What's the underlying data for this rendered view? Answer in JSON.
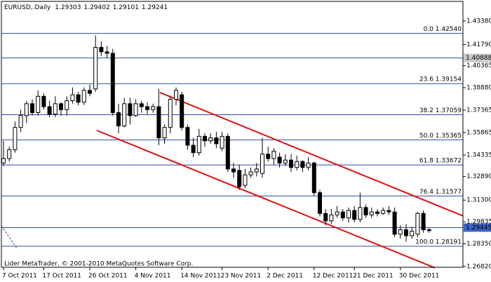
{
  "chart_data": {
    "type": "candlestick",
    "title": "EURUSD,.Daily",
    "footer": "Lider MetaTrader, © 2001-2010 MetaQuotes Software Corp.",
    "categories": [
      "7 Oct 2011",
      null,
      null,
      null,
      null,
      null,
      null,
      "17 Oct 2011",
      null,
      null,
      null,
      null,
      null,
      null,
      null,
      "26 Oct 2011",
      null,
      null,
      null,
      null,
      null,
      null,
      null,
      "4 Nov 2011",
      null,
      null,
      null,
      null,
      null,
      null,
      null,
      "14 Nov 2011",
      null,
      null,
      null,
      null,
      null,
      null,
      "23 Nov 2011",
      null,
      null,
      null,
      null,
      null,
      null,
      null,
      "2 Dec 2011",
      null,
      null,
      null,
      null,
      null,
      null,
      null,
      "12 Dec 2011",
      null,
      null,
      null,
      null,
      null,
      null,
      "21 Dec 2011",
      null,
      null,
      null,
      null,
      null,
      null,
      null,
      "30 Dec 2011",
      null,
      null,
      null,
      null,
      null
    ],
    "open": [
      1.338,
      1.341,
      1.347,
      1.362,
      1.37,
      1.378,
      1.372,
      1.383,
      1.376,
      1.371,
      1.378,
      1.374,
      1.38,
      1.384,
      1.379,
      1.387,
      1.388,
      1.416,
      1.413,
      1.412,
      1.372,
      1.363,
      1.378,
      1.37,
      1.378,
      1.376,
      1.374,
      1.376,
      1.355,
      1.362,
      1.381,
      1.384,
      1.362,
      1.35,
      1.345,
      1.356,
      1.353,
      1.355,
      1.348,
      1.356,
      1.334,
      1.333,
      1.323,
      1.33,
      1.332,
      1.331,
      1.344,
      1.341,
      1.342,
      1.338,
      1.34,
      1.335,
      1.339,
      1.335,
      1.338,
      1.318,
      1.304,
      1.299,
      1.303,
      1.305,
      1.301,
      1.306,
      1.3,
      1.308,
      1.303,
      1.305,
      1.304,
      1.306,
      1.305,
      1.29,
      1.293,
      1.289,
      1.29,
      1.304,
      1.29303
    ],
    "high": [
      1.353,
      1.349,
      1.366,
      1.374,
      1.38,
      1.381,
      1.387,
      1.385,
      1.38,
      1.383,
      1.379,
      1.383,
      1.389,
      1.386,
      1.389,
      1.391,
      1.424,
      1.42,
      1.417,
      1.415,
      1.378,
      1.382,
      1.382,
      1.381,
      1.38,
      1.379,
      1.378,
      1.388,
      1.364,
      1.383,
      1.389,
      1.386,
      1.364,
      1.355,
      1.361,
      1.358,
      1.358,
      1.359,
      1.359,
      1.358,
      1.338,
      1.337,
      1.334,
      1.335,
      1.338,
      1.355,
      1.349,
      1.348,
      1.345,
      1.344,
      1.344,
      1.343,
      1.34,
      1.342,
      1.339,
      1.32,
      1.307,
      1.307,
      1.309,
      1.307,
      1.308,
      1.309,
      1.318,
      1.31,
      1.308,
      1.307,
      1.308,
      1.309,
      1.308,
      1.296,
      1.297,
      1.295,
      1.305,
      1.306,
      1.29402
    ],
    "low": [
      1.336,
      1.339,
      1.345,
      1.359,
      1.365,
      1.37,
      1.37,
      1.374,
      1.369,
      1.369,
      1.37,
      1.37,
      1.378,
      1.377,
      1.377,
      1.383,
      1.386,
      1.41,
      1.409,
      1.37,
      1.358,
      1.362,
      1.364,
      1.369,
      1.372,
      1.371,
      1.372,
      1.35,
      1.351,
      1.358,
      1.377,
      1.36,
      1.347,
      1.342,
      1.343,
      1.349,
      1.351,
      1.348,
      1.346,
      1.332,
      1.328,
      1.32,
      1.321,
      1.328,
      1.329,
      1.328,
      1.339,
      1.337,
      1.335,
      1.336,
      1.332,
      1.333,
      1.332,
      1.333,
      1.316,
      1.302,
      1.296,
      1.297,
      1.301,
      1.299,
      1.298,
      1.298,
      1.298,
      1.301,
      1.301,
      1.302,
      1.303,
      1.303,
      1.288,
      1.287,
      1.285,
      1.287,
      1.288,
      1.291,
      1.29101
    ],
    "close": [
      1.341,
      1.347,
      1.362,
      1.37,
      1.378,
      1.372,
      1.383,
      1.376,
      1.371,
      1.378,
      1.374,
      1.38,
      1.384,
      1.379,
      1.387,
      1.385,
      1.416,
      1.413,
      1.412,
      1.372,
      1.363,
      1.378,
      1.37,
      1.378,
      1.376,
      1.374,
      1.376,
      1.355,
      1.362,
      1.381,
      1.387,
      1.362,
      1.35,
      1.345,
      1.356,
      1.353,
      1.355,
      1.351,
      1.356,
      1.334,
      1.332,
      1.322,
      1.33,
      1.332,
      1.334,
      1.344,
      1.341,
      1.346,
      1.338,
      1.34,
      1.335,
      1.339,
      1.335,
      1.338,
      1.318,
      1.304,
      1.299,
      1.303,
      1.305,
      1.301,
      1.306,
      1.3,
      1.308,
      1.303,
      1.305,
      1.304,
      1.306,
      1.305,
      1.29,
      1.293,
      1.289,
      1.292,
      1.304,
      1.293,
      1.29241
    ],
    "bull_color": "#ffffff",
    "bear_color": "#000000",
    "ylim": [
      1.2677,
      1.447
    ],
    "yticks": [
      {
        "value": 1.4338,
        "label": "1.43380"
      },
      {
        "value": 1.4179,
        "label": "1.41790"
      },
      {
        "value": 1.40365,
        "label": "1.40365"
      },
      {
        "value": 1.3888,
        "label": "1.38880"
      },
      {
        "value": 1.37365,
        "label": "1.37365"
      },
      {
        "value": 1.35865,
        "label": "1.35865"
      },
      {
        "value": 1.34335,
        "label": "1.34335"
      },
      {
        "value": 1.3289,
        "label": "1.32890"
      },
      {
        "value": 1.313,
        "label": "1.31300"
      },
      {
        "value": 1.29835,
        "label": "1.29835"
      },
      {
        "value": 1.2835,
        "label": "1.28350"
      },
      {
        "value": 1.2682,
        "label": "1.26820"
      }
    ],
    "fib_color": "#34489c",
    "fib_levels": [
      {
        "value": 1.4254,
        "label": "0.0 1.42540"
      },
      {
        "value": 1.39154,
        "label": "23.6 1.39154"
      },
      {
        "value": 1.37059,
        "label": "38.2 1.37059"
      },
      {
        "value": 1.35365,
        "label": "50.0 1.35365"
      },
      {
        "value": 1.33672,
        "label": "61.8 1.33672"
      },
      {
        "value": 1.31577,
        "label": "76.4 1.31577"
      },
      {
        "value": 1.28191,
        "label": "100.0 1.28191"
      }
    ],
    "price_lines": [
      {
        "value": 1.40888,
        "label": "1.40888",
        "color": "#c8c8c8",
        "text_color": "#000000"
      },
      {
        "value": 1.29445,
        "label": "1.29445",
        "color": "#3c64c8",
        "text_color": "#ffffff"
      }
    ],
    "trend_color": "#e01010",
    "trendlines": [
      {
        "x": [
          27.2,
          79.9
        ],
        "y": [
          1.38555,
          1.30231
        ]
      },
      {
        "x": [
          16.2,
          75
        ],
        "y": [
          1.36001,
          1.2673
        ]
      }
    ]
  }
}
